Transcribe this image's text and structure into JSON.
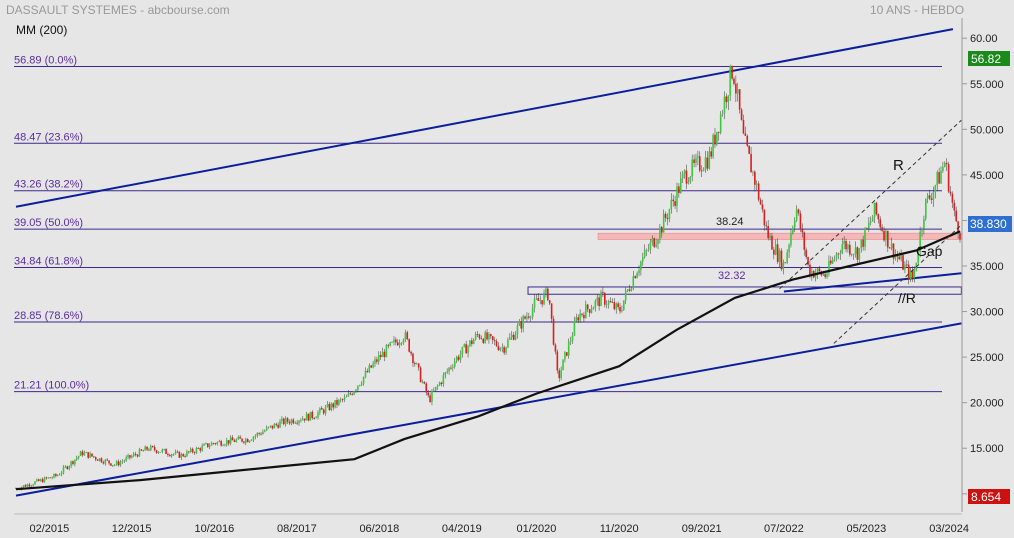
{
  "header": {
    "title": "DASSAULT SYSTEMES - abcbourse.com",
    "period": "10 ANS - HEBDO",
    "indicator": "MM (200)"
  },
  "colors": {
    "background": "#e6e6e6",
    "fib": "#3b2a8c",
    "fib_text": "#5a2ca0",
    "trend": "#0a1f9c",
    "up": "#3cc83c",
    "down": "#d81e1e",
    "ma": "#111111",
    "last_price_badge": "#1a8a1a",
    "current_badge": "#2f6fd0",
    "volume_badge": "#cc1111",
    "resistance_zone": "#f4b8b8"
  },
  "chart_data": {
    "type": "candlestick",
    "title": "DASSAULT SYSTEMES - abcbourse.com",
    "xlabel": "",
    "ylabel": "",
    "x_ticks": [
      "02/2015",
      "12/2015",
      "10/2016",
      "08/2017",
      "06/2018",
      "04/2019",
      "01/2020",
      "11/2020",
      "09/2021",
      "07/2022",
      "05/2023",
      "03/2024"
    ],
    "y_ticks": [
      "10.000",
      "15.000",
      "20.000",
      "25.000",
      "30.000",
      "35.000",
      "40.000",
      "45.000",
      "50.000",
      "55.000",
      "60.00"
    ],
    "ylim": [
      8,
      62
    ],
    "y_tick_values": [
      10,
      15,
      20,
      25,
      30,
      35,
      40,
      45,
      50,
      55,
      60
    ],
    "grid": false,
    "fibonacci_levels": [
      {
        "label": "56.89  (0.0%)",
        "value": 56.89
      },
      {
        "label": "48.47  (23.6%)",
        "value": 48.47
      },
      {
        "label": "43.26  (38.2%)",
        "value": 43.26
      },
      {
        "label": "39.05  (50.0%)",
        "value": 39.05
      },
      {
        "label": "34.84  (61.8%)",
        "value": 34.84
      },
      {
        "label": "28.85  (78.6%)",
        "value": 28.85
      },
      {
        "label": "21.21  (100.0%)",
        "value": 21.21
      }
    ],
    "price_anchors": [
      {
        "date": "2014-10-01",
        "value": 10.6
      },
      {
        "date": "2015-03-01",
        "value": 12.0
      },
      {
        "date": "2015-06-01",
        "value": 14.5
      },
      {
        "date": "2015-10-01",
        "value": 13.2
      },
      {
        "date": "2016-02-01",
        "value": 15.0
      },
      {
        "date": "2016-06-01",
        "value": 14.2
      },
      {
        "date": "2016-10-01",
        "value": 15.6
      },
      {
        "date": "2017-02-01",
        "value": 16.0
      },
      {
        "date": "2017-06-01",
        "value": 17.8
      },
      {
        "date": "2017-10-01",
        "value": 18.6
      },
      {
        "date": "2018-02-01",
        "value": 20.5
      },
      {
        "date": "2018-06-01",
        "value": 25.0
      },
      {
        "date": "2018-09-01",
        "value": 27.5
      },
      {
        "date": "2018-12-01",
        "value": 20.3
      },
      {
        "date": "2019-03-01",
        "value": 24.5
      },
      {
        "date": "2019-06-01",
        "value": 27.5
      },
      {
        "date": "2019-09-01",
        "value": 26.0
      },
      {
        "date": "2020-01-01",
        "value": 31.0
      },
      {
        "date": "2020-02-15",
        "value": 32.0
      },
      {
        "date": "2020-03-20",
        "value": 22.5
      },
      {
        "date": "2020-06-01",
        "value": 29.5
      },
      {
        "date": "2020-09-01",
        "value": 31.5
      },
      {
        "date": "2020-11-01",
        "value": 30.0
      },
      {
        "date": "2021-01-01",
        "value": 34.5
      },
      {
        "date": "2021-04-01",
        "value": 39.0
      },
      {
        "date": "2021-07-01",
        "value": 45.0
      },
      {
        "date": "2021-10-01",
        "value": 47.0
      },
      {
        "date": "2021-12-25",
        "value": 56.8
      },
      {
        "date": "2022-02-01",
        "value": 49.0
      },
      {
        "date": "2022-03-20",
        "value": 44.0
      },
      {
        "date": "2022-05-01",
        "value": 38.5
      },
      {
        "date": "2022-07-01",
        "value": 35.0
      },
      {
        "date": "2022-08-15",
        "value": 41.5
      },
      {
        "date": "2022-10-01",
        "value": 34.5
      },
      {
        "date": "2022-12-01",
        "value": 34.0
      },
      {
        "date": "2023-02-01",
        "value": 37.5
      },
      {
        "date": "2023-04-01",
        "value": 36.5
      },
      {
        "date": "2023-06-01",
        "value": 41.0
      },
      {
        "date": "2023-08-01",
        "value": 37.0
      },
      {
        "date": "2023-10-20",
        "value": 33.5
      },
      {
        "date": "2023-12-01",
        "value": 41.5
      },
      {
        "date": "2024-01-20",
        "value": 44.5
      },
      {
        "date": "2024-02-15",
        "value": 46.5
      },
      {
        "date": "2024-03-20",
        "value": 40.5
      },
      {
        "date": "2024-04-10",
        "value": 38.83
      }
    ],
    "moving_average_200": [
      {
        "date": "2014-10-01",
        "value": 10.5
      },
      {
        "date": "2016-01-01",
        "value": 11.5
      },
      {
        "date": "2017-06-01",
        "value": 13.0
      },
      {
        "date": "2018-03-01",
        "value": 13.8
      },
      {
        "date": "2018-09-01",
        "value": 16.0
      },
      {
        "date": "2019-06-01",
        "value": 18.5
      },
      {
        "date": "2020-01-01",
        "value": 21.0
      },
      {
        "date": "2020-11-01",
        "value": 24.0
      },
      {
        "date": "2021-06-01",
        "value": 28.0
      },
      {
        "date": "2022-01-01",
        "value": 31.5
      },
      {
        "date": "2022-08-01",
        "value": 33.5
      },
      {
        "date": "2023-03-01",
        "value": 35.0
      },
      {
        "date": "2023-11-01",
        "value": 36.7
      },
      {
        "date": "2024-04-10",
        "value": 38.8
      }
    ],
    "trend_lines": [
      {
        "name": "upper-channel",
        "points": [
          {
            "date": "2014-10-01",
            "value": 41.5
          },
          {
            "date": "2024-03-15",
            "value": 61.0
          }
        ]
      },
      {
        "name": "lower-channel",
        "points": [
          {
            "date": "2014-10-01",
            "value": 9.8
          },
          {
            "date": "2024-04-15",
            "value": 28.7
          }
        ]
      },
      {
        "name": "support-wedge",
        "points": [
          {
            "date": "2022-07-01",
            "value": 32.2
          },
          {
            "date": "2024-04-15",
            "value": 34.2
          }
        ]
      }
    ],
    "channel_lines": [
      {
        "name": "R",
        "points": [
          {
            "date": "2022-06-15",
            "value": 32.5
          },
          {
            "date": "2024-04-15",
            "value": 51.0
          }
        ]
      },
      {
        "name": "//R",
        "points": [
          {
            "date": "2023-01-01",
            "value": 26.5
          },
          {
            "date": "2024-04-15",
            "value": 39.5
          }
        ]
      }
    ],
    "zones": [
      {
        "name": "resistance-38.24",
        "label": "38.24",
        "low": 37.9,
        "high": 38.6,
        "start": "2020-08-15",
        "end": "2024-04-15"
      },
      {
        "name": "support-32.32",
        "label": "32.32",
        "low": 31.9,
        "high": 32.7,
        "start": "2019-12-01",
        "end": "2024-04-15"
      }
    ],
    "annotations": [
      {
        "text": "R"
      },
      {
        "text": "Gap"
      },
      {
        "text": "//R"
      },
      {
        "text": "38.24"
      },
      {
        "text": "32.32"
      }
    ],
    "last_price": "56.82",
    "current_price": "38.830",
    "volume": "8.654",
    "x_start": "2014-10-01",
    "x_end": "2024-04-10"
  }
}
